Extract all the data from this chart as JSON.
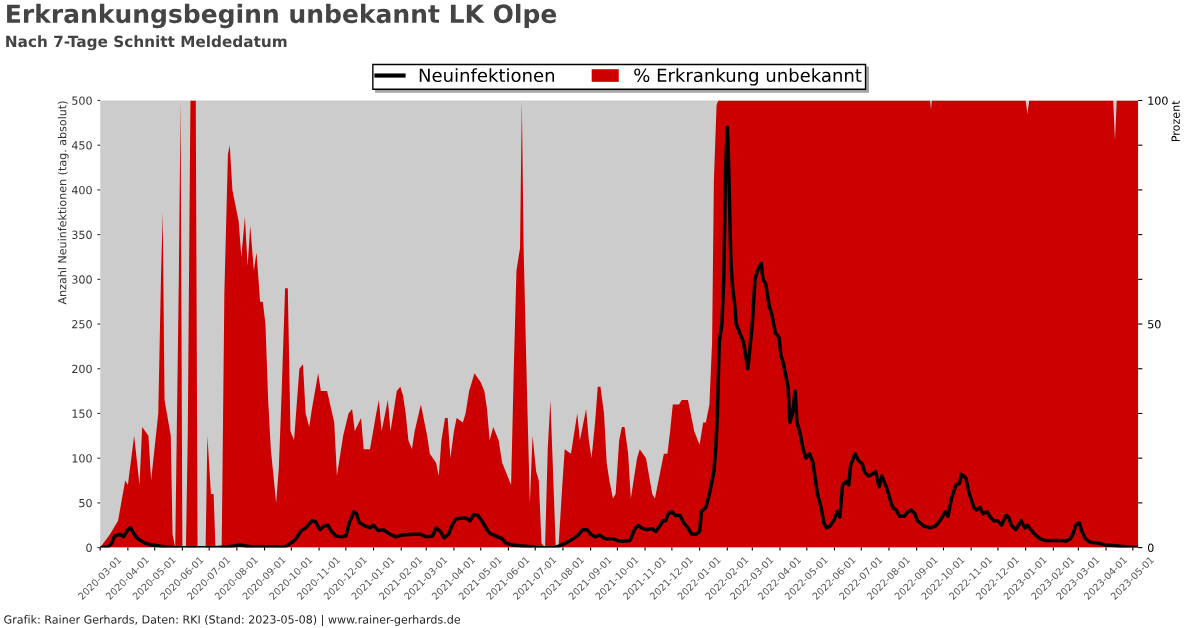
{
  "chart_data": {
    "type": "line",
    "title": "Erkrankungsbeginn unbekannt LK Olpe",
    "subtitle": "Nach 7-Tage Schnitt Meldedatum",
    "ylabel": "Anzahl Neuinfektionen (tag. absolut)",
    "y2label": "Prozent",
    "annotations": [
      "Grafik: Rainer Gerhards, Daten: RKI (Stand: 2023-05-08) | www.rainer-gerhards.de"
    ],
    "xlim": [
      "2020-03-01",
      "2023-05-07"
    ],
    "xticks": [
      "2020-03-01",
      "2020-04-01",
      "2020-05-01",
      "2020-06-01",
      "2020-07-01",
      "2020-08-01",
      "2020-09-01",
      "2020-10-01",
      "2020-11-01",
      "2020-12-01",
      "2021-01-01",
      "2021-02-01",
      "2021-03-01",
      "2021-04-01",
      "2021-05-01",
      "2021-06-01",
      "2021-07-01",
      "2021-08-01",
      "2021-09-01",
      "2021-10-01",
      "2021-11-01",
      "2021-12-01",
      "2022-01-01",
      "2022-02-01",
      "2022-03-01",
      "2022-04-01",
      "2022-05-01",
      "2022-06-01",
      "2022-07-01",
      "2022-08-01",
      "2022-09-01",
      "2022-10-01",
      "2022-11-01",
      "2022-12-01",
      "2023-01-01",
      "2023-02-01",
      "2023-03-01",
      "2023-04-01",
      "2023-05-01"
    ],
    "ylim": [
      0,
      500
    ],
    "yticks": [
      0,
      50,
      100,
      150,
      200,
      250,
      300,
      350,
      400,
      450,
      500
    ],
    "y2lim": [
      0,
      100
    ],
    "y2ticks": [
      0,
      {
        "value": 10,
        "label": null
      },
      {
        "value": 20,
        "label": null
      },
      {
        "value": 30,
        "label": null
      },
      {
        "value": 40,
        "label": null
      },
      50,
      {
        "value": 60,
        "label": null
      },
      {
        "value": 70,
        "label": null
      },
      {
        "value": 80,
        "label": null
      },
      {
        "value": 90,
        "label": null
      },
      100
    ],
    "grid": false,
    "legend": "top",
    "marker": "none",
    "line_style": "solid",
    "series": [
      {
        "name": "Neuinfektionen",
        "color": "#000000",
        "x": [
          "2020-03-01",
          "2020-03-10",
          "2020-03-14",
          "2020-03-17",
          "2020-03-23",
          "2020-03-27",
          "2020-04-01",
          "2020-04-04",
          "2020-04-08",
          "2020-04-12",
          "2020-04-20",
          "2020-04-27",
          "2020-05-05",
          "2020-05-12",
          "2020-05-23",
          "2020-07-07",
          "2020-07-24",
          "2020-08-04",
          "2020-08-16",
          "2020-09-24",
          "2020-10-02",
          "2020-10-06",
          "2020-10-12",
          "2020-10-17",
          "2020-10-24",
          "2020-10-28",
          "2020-11-02",
          "2020-11-06",
          "2020-11-11",
          "2020-11-15",
          "2020-11-20",
          "2020-11-26",
          "2020-12-01",
          "2020-12-05",
          "2020-12-10",
          "2020-12-13",
          "2020-12-16",
          "2020-12-23",
          "2020-12-28",
          "2021-01-01",
          "2021-01-06",
          "2021-01-12",
          "2021-01-19",
          "2021-01-26",
          "2021-02-02",
          "2021-02-15",
          "2021-02-22",
          "2021-03-01",
          "2021-03-08",
          "2021-03-12",
          "2021-03-17",
          "2021-03-21",
          "2021-03-26",
          "2021-03-30",
          "2021-04-03",
          "2021-04-10",
          "2021-04-14",
          "2021-04-19",
          "2021-04-23",
          "2021-04-28",
          "2021-05-02",
          "2021-05-07",
          "2021-05-11",
          "2021-05-16",
          "2021-05-20",
          "2021-05-25",
          "2021-05-29",
          "2021-06-05",
          "2021-06-14",
          "2021-06-25",
          "2021-07-06",
          "2021-07-23",
          "2021-07-28",
          "2021-08-04",
          "2021-08-11",
          "2021-08-18",
          "2021-08-23",
          "2021-08-28",
          "2021-09-01",
          "2021-09-06",
          "2021-09-11",
          "2021-09-17",
          "2021-09-25",
          "2021-10-01",
          "2021-10-08",
          "2021-10-15",
          "2021-10-20",
          "2021-10-24",
          "2021-10-28",
          "2021-11-02",
          "2021-11-09",
          "2021-11-13",
          "2021-11-18",
          "2021-11-21",
          "2021-11-24",
          "2021-11-27",
          "2021-12-01",
          "2021-12-05",
          "2021-12-10",
          "2021-12-14",
          "2021-12-19",
          "2021-12-23",
          "2021-12-28",
          "2022-01-01",
          "2022-01-03",
          "2022-01-08",
          "2022-01-12",
          "2022-01-17",
          "2022-01-19",
          "2022-01-21",
          "2022-01-23",
          "2022-01-26",
          "2022-01-28",
          "2022-01-30",
          "2022-02-01",
          "2022-02-02",
          "2022-02-05",
          "2022-02-07",
          "2022-02-09",
          "2022-02-11",
          "2022-02-15",
          "2022-02-19",
          "2022-02-24",
          "2022-03-01",
          "2022-03-04",
          "2022-03-07",
          "2022-03-11",
          "2022-03-13",
          "2022-03-16",
          "2022-03-20",
          "2022-03-23",
          "2022-03-27",
          "2022-03-31",
          "2022-04-02",
          "2022-04-05",
          "2022-04-10",
          "2022-04-12",
          "2022-04-15",
          "2022-04-18",
          "2022-04-20",
          "2022-04-23",
          "2022-04-27",
          "2022-04-30",
          "2022-05-04",
          "2022-05-08",
          "2022-05-10",
          "2022-05-13",
          "2022-05-17",
          "2022-05-20",
          "2022-05-23",
          "2022-05-27",
          "2022-06-01",
          "2022-06-04",
          "2022-06-07",
          "2022-06-10",
          "2022-06-14",
          "2022-06-17",
          "2022-06-19",
          "2022-06-24",
          "2022-06-28",
          "2022-07-02",
          "2022-07-05",
          "2022-07-09",
          "2022-07-13",
          "2022-07-17",
          "2022-07-21",
          "2022-07-24",
          "2022-07-29",
          "2022-08-02",
          "2022-08-05",
          "2022-08-09",
          "2022-08-13",
          "2022-08-18",
          "2022-08-22",
          "2022-08-26",
          "2022-08-30",
          "2022-09-02",
          "2022-09-09",
          "2022-09-16",
          "2022-09-22",
          "2022-09-27",
          "2022-10-03",
          "2022-10-06",
          "2022-10-10",
          "2022-10-15",
          "2022-10-19",
          "2022-10-21",
          "2022-10-26",
          "2022-10-30",
          "2022-11-04",
          "2022-11-07",
          "2022-11-11",
          "2022-11-14",
          "2022-11-19",
          "2022-11-22",
          "2022-11-26",
          "2022-12-01",
          "2022-12-05",
          "2022-12-10",
          "2022-12-13",
          "2022-12-16",
          "2022-12-21",
          "2022-12-24",
          "2022-12-27",
          "2022-12-31",
          "2023-01-03",
          "2023-01-07",
          "2023-01-11",
          "2023-01-17",
          "2023-01-22",
          "2023-02-11",
          "2023-02-15",
          "2023-02-20",
          "2023-02-23",
          "2023-02-26",
          "2023-03-02",
          "2023-03-05",
          "2023-03-09",
          "2023-03-14",
          "2023-03-23",
          "2023-03-31",
          "2023-04-11",
          "2023-04-22",
          "2023-05-07"
        ],
        "values": [
          0,
          1,
          5,
          13,
          15,
          12,
          20,
          22,
          15,
          10,
          5,
          3,
          2,
          1,
          0,
          0,
          1,
          3,
          1,
          1,
          6,
          10,
          19,
          22,
          30,
          29,
          20,
          24,
          25,
          18,
          13,
          12,
          13,
          28,
          40,
          38,
          28,
          24,
          22,
          25,
          19,
          20,
          15,
          12,
          14,
          15,
          15,
          12,
          13,
          22,
          18,
          11,
          15,
          25,
          32,
          33,
          33,
          30,
          37,
          36,
          30,
          22,
          16,
          14,
          12,
          10,
          5,
          3,
          2,
          1,
          0,
          0,
          2,
          5,
          9,
          14,
          20,
          20,
          15,
          12,
          14,
          10,
          10,
          8,
          7,
          8,
          20,
          25,
          22,
          20,
          21,
          18,
          25,
          30,
          30,
          38,
          40,
          36,
          36,
          28,
          22,
          15,
          15,
          18,
          40,
          45,
          60,
          85,
          110,
          150,
          230,
          250,
          300,
          420,
          470,
          450,
          320,
          290,
          275,
          250,
          240,
          230,
          200,
          250,
          300,
          310,
          318,
          300,
          295,
          270,
          260,
          240,
          235,
          215,
          205,
          180,
          140,
          150,
          175,
          140,
          130,
          110,
          100,
          105,
          95,
          80,
          60,
          45,
          28,
          22,
          24,
          32,
          40,
          34,
          70,
          74,
          70,
          92,
          105,
          97,
          94,
          84,
          80,
          82,
          85,
          68,
          80,
          68,
          55,
          45,
          42,
          35,
          35,
          40,
          42,
          38,
          30,
          24,
          22,
          24,
          30,
          40,
          35,
          55,
          70,
          72,
          82,
          78,
          60,
          45,
          42,
          45,
          38,
          40,
          35,
          30,
          30,
          25,
          36,
          34,
          25,
          20,
          25,
          30,
          22,
          25,
          20,
          15,
          10,
          8,
          8,
          7,
          10,
          15,
          25,
          28,
          18,
          10,
          6,
          5,
          3,
          2,
          1,
          0
        ]
      },
      {
        "name": "% Erkrankung unbekannt",
        "type": "area",
        "axis": "y2",
        "color": "#cc0000",
        "x": [
          "2020-03-01",
          "2020-03-12",
          "2020-03-21",
          "2020-03-29",
          "2020-04-01",
          "2020-04-08",
          "2020-04-14",
          "2020-04-17",
          "2020-04-24",
          "2020-04-27",
          "2020-05-05",
          "2020-05-08",
          "2020-05-10",
          "2020-05-12",
          "2020-05-19",
          "2020-05-21",
          "2020-05-24",
          "2020-05-28",
          "2020-05-30",
          "2020-06-01",
          "2020-06-05",
          "2020-06-07",
          "2020-06-10",
          "2020-06-16",
          "2020-06-18",
          "2020-06-27",
          "2020-06-29",
          "2020-07-03",
          "2020-07-06",
          "2020-07-08",
          "2020-07-15",
          "2020-07-18",
          "2020-07-22",
          "2020-07-24",
          "2020-07-27",
          "2020-08-03",
          "2020-08-06",
          "2020-08-10",
          "2020-08-13",
          "2020-08-16",
          "2020-08-20",
          "2020-08-23",
          "2020-08-27",
          "2020-08-30",
          "2020-09-02",
          "2020-09-05",
          "2020-09-08",
          "2020-09-14",
          "2020-09-17",
          "2020-09-20",
          "2020-09-24",
          "2020-09-27",
          "2020-09-30",
          "2020-10-04",
          "2020-10-10",
          "2020-10-14",
          "2020-10-17",
          "2020-10-21",
          "2020-10-24",
          "2020-10-31",
          "2020-11-03",
          "2020-11-10",
          "2020-11-18",
          "2020-11-21",
          "2020-11-28",
          "2020-12-04",
          "2020-12-08",
          "2020-12-11",
          "2020-12-18",
          "2020-12-21",
          "2020-12-28",
          "2021-01-04",
          "2021-01-07",
          "2021-01-10",
          "2021-01-14",
          "2021-01-17",
          "2021-01-20",
          "2021-01-27",
          "2021-01-31",
          "2021-02-03",
          "2021-02-06",
          "2021-02-09",
          "2021-02-13",
          "2021-02-16",
          "2021-02-23",
          "2021-03-02",
          "2021-03-05",
          "2021-03-12",
          "2021-03-15",
          "2021-03-18",
          "2021-03-22",
          "2021-03-25",
          "2021-03-28",
          "2021-04-01",
          "2021-04-04",
          "2021-04-11",
          "2021-04-14",
          "2021-04-18",
          "2021-04-24",
          "2021-05-01",
          "2021-05-05",
          "2021-05-08",
          "2021-05-11",
          "2021-05-15",
          "2021-05-21",
          "2021-05-25",
          "2021-05-31",
          "2021-06-04",
          "2021-06-07",
          "2021-06-10",
          "2021-06-14",
          "2021-06-16",
          "2021-06-18",
          "2021-06-22",
          "2021-06-25",
          "2021-06-28",
          "2021-07-02",
          "2021-07-05",
          "2021-07-08",
          "2021-07-12",
          "2021-07-15",
          "2021-07-18",
          "2021-07-20",
          "2021-07-24",
          "2021-07-27",
          "2021-07-31",
          "2021-08-03",
          "2021-08-10",
          "2021-08-17",
          "2021-08-20",
          "2021-08-27",
          "2021-08-30",
          "2021-09-02",
          "2021-09-06",
          "2021-09-09",
          "2021-09-12",
          "2021-09-16",
          "2021-09-19",
          "2021-09-22",
          "2021-09-26",
          "2021-09-29",
          "2021-10-03",
          "2021-10-06",
          "2021-10-09",
          "2021-10-13",
          "2021-10-16",
          "2021-10-23",
          "2021-10-26",
          "2021-11-02",
          "2021-11-09",
          "2021-11-12",
          "2021-11-15",
          "2021-11-22",
          "2021-11-26",
          "2021-11-29",
          "2021-12-02",
          "2021-12-09",
          "2021-12-12",
          "2021-12-19",
          "2021-12-26",
          "2022-01-01",
          "2022-01-05",
          "2022-01-08",
          "2022-01-12",
          "2022-01-15",
          "2022-01-17",
          "2022-01-20",
          "2022-01-22",
          "2022-09-16",
          "2022-09-17",
          "2022-09-18",
          "2023-01-01",
          "2023-01-03",
          "2023-01-05",
          "2023-04-09",
          "2023-04-11",
          "2023-04-13",
          "2023-05-07"
        ],
        "values": [
          0,
          3,
          6,
          15,
          14,
          25,
          14,
          27,
          25,
          15,
          30,
          60,
          75,
          33,
          25,
          3,
          0,
          60,
          100,
          0,
          0,
          25,
          100,
          100,
          0,
          0,
          25,
          12,
          12,
          0,
          0,
          57,
          88,
          90,
          80,
          73,
          65,
          74,
          63,
          72,
          62,
          66,
          55,
          55,
          50,
          33,
          22,
          10,
          18,
          34,
          58,
          58,
          26,
          24,
          40,
          41,
          30,
          27,
          31,
          39,
          35,
          35,
          28,
          16,
          25,
          30,
          31,
          26,
          29,
          22,
          22,
          30,
          33,
          26,
          30,
          33,
          26,
          35,
          36,
          34,
          30,
          24,
          22,
          26,
          32,
          25,
          21,
          19,
          16,
          24,
          29,
          29,
          20,
          26,
          29,
          28,
          30,
          35,
          39,
          37,
          35,
          31,
          24,
          27,
          24,
          19,
          16,
          14,
          40,
          62,
          67,
          100,
          67,
          33,
          10,
          25,
          17,
          15,
          1,
          0,
          22,
          33,
          22,
          0,
          0,
          13,
          22,
          21,
          30,
          24,
          31,
          24,
          20,
          28,
          36,
          36,
          30,
          19,
          15,
          11,
          12,
          24,
          27,
          27,
          21,
          11,
          20,
          22,
          20,
          12,
          11,
          14,
          21,
          21,
          26,
          32,
          32,
          33,
          33,
          26,
          23,
          28,
          28,
          32,
          46,
          82,
          99,
          100,
          100,
          98,
          100,
          100,
          97,
          100,
          100,
          91,
          100,
          100
        ]
      }
    ]
  }
}
